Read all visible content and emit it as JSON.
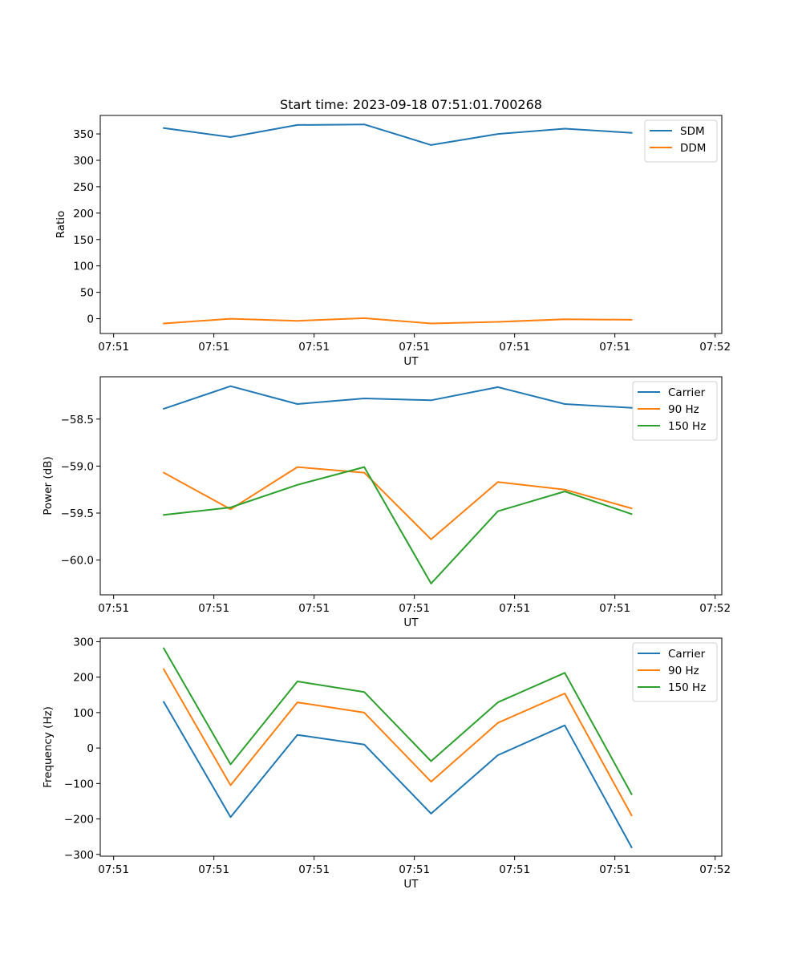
{
  "chart_data": [
    {
      "type": "line",
      "title": "Start time: 2023-09-18 07:51:01.700268",
      "xlabel": "UT",
      "ylabel": "Ratio",
      "xlim": [
        -0.2,
        9.1
      ],
      "x_ticks": [
        0,
        1.5,
        3,
        4.5,
        6,
        7.5,
        9
      ],
      "x_tick_labels": [
        "07:51",
        "07:51",
        "07:51",
        "07:51",
        "07:51",
        "07:51",
        "07:52"
      ],
      "ylim": [
        -28,
        385
      ],
      "y_ticks": [
        0,
        50,
        100,
        150,
        200,
        250,
        300,
        350
      ],
      "y_tick_labels": [
        "0",
        "50",
        "100",
        "150",
        "200",
        "250",
        "300",
        "350"
      ],
      "legend_position": "top-right",
      "x": [
        0.75,
        1.75,
        2.75,
        3.75,
        4.75,
        5.75,
        6.75,
        7.75
      ],
      "series": [
        {
          "name": "SDM",
          "color": "#1f77b4",
          "values": [
            361,
            344,
            367,
            368,
            329,
            350,
            360,
            352
          ]
        },
        {
          "name": "DDM",
          "color": "#ff7f0e",
          "values": [
            -9,
            0,
            -4,
            1,
            -9,
            -6,
            -1,
            -2
          ]
        }
      ]
    },
    {
      "type": "line",
      "title": "",
      "xlabel": "UT",
      "ylabel": "Power (dB)",
      "xlim": [
        -0.2,
        9.1
      ],
      "x_ticks": [
        0,
        1.5,
        3,
        4.5,
        6,
        7.5,
        9
      ],
      "x_tick_labels": [
        "07:51",
        "07:51",
        "07:51",
        "07:51",
        "07:51",
        "07:51",
        "07:52"
      ],
      "ylim": [
        -60.37,
        -58.05
      ],
      "y_ticks": [
        -58.5,
        -59.0,
        -59.5,
        -60.0
      ],
      "y_tick_labels": [
        "−58.5",
        "−59.0",
        "−59.5",
        "−60.0"
      ],
      "legend_position": "top-right",
      "x": [
        0.75,
        1.75,
        2.75,
        3.75,
        4.75,
        5.75,
        6.75,
        7.75
      ],
      "series": [
        {
          "name": "Carrier",
          "color": "#1f77b4",
          "values": [
            -58.39,
            -58.15,
            -58.34,
            -58.28,
            -58.3,
            -58.16,
            -58.34,
            -58.38
          ]
        },
        {
          "name": "90 Hz",
          "color": "#ff7f0e",
          "values": [
            -59.07,
            -59.46,
            -59.01,
            -59.07,
            -59.78,
            -59.17,
            -59.25,
            -59.45
          ]
        },
        {
          "name": "150 Hz",
          "color": "#2ca02c",
          "values": [
            -59.52,
            -59.44,
            -59.2,
            -59.01,
            -60.25,
            -59.48,
            -59.27,
            -59.51
          ]
        }
      ]
    },
    {
      "type": "line",
      "title": "",
      "xlabel": "UT",
      "ylabel": "Frequency (Hz)",
      "xlim": [
        -0.2,
        9.1
      ],
      "x_ticks": [
        0,
        1.5,
        3,
        4.5,
        6,
        7.5,
        9
      ],
      "x_tick_labels": [
        "07:51",
        "07:51",
        "07:51",
        "07:51",
        "07:51",
        "07:51",
        "07:52"
      ],
      "ylim": [
        -305,
        310
      ],
      "y_ticks": [
        -300,
        -200,
        -100,
        0,
        100,
        200,
        300
      ],
      "y_tick_labels": [
        "−300",
        "−200",
        "−100",
        "0",
        "100",
        "200",
        "300"
      ],
      "legend_position": "top-right",
      "x": [
        0.75,
        1.75,
        2.75,
        3.75,
        4.75,
        5.75,
        6.75,
        7.75
      ],
      "series": [
        {
          "name": "Carrier",
          "color": "#1f77b4",
          "values": [
            130,
            -195,
            37,
            10,
            -185,
            -20,
            64,
            -280
          ]
        },
        {
          "name": "90 Hz",
          "color": "#ff7f0e",
          "values": [
            222,
            -105,
            129,
            100,
            -95,
            71,
            154,
            -190
          ]
        },
        {
          "name": "150 Hz",
          "color": "#2ca02c",
          "values": [
            281,
            -46,
            188,
            158,
            -37,
            129,
            212,
            -130
          ]
        }
      ]
    }
  ]
}
